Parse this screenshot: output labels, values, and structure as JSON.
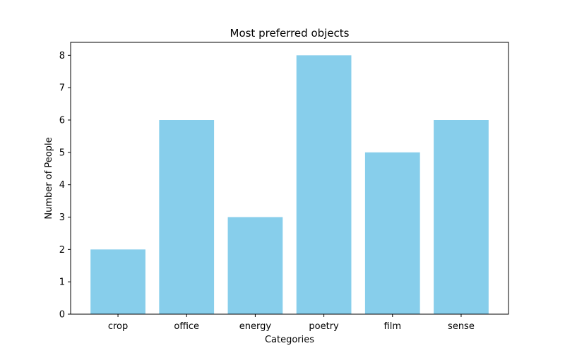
{
  "chart_data": {
    "type": "bar",
    "title": "Most preferred objects",
    "xlabel": "Categories",
    "ylabel": "Number of People",
    "categories": [
      "crop",
      "office",
      "energy",
      "poetry",
      "film",
      "sense"
    ],
    "values": [
      2,
      6,
      3,
      8,
      5,
      6
    ],
    "ylim": [
      0,
      8.4
    ],
    "yticks": [
      0,
      1,
      2,
      3,
      4,
      5,
      6,
      7,
      8
    ],
    "bar_color": "#87CEEB",
    "grid": false,
    "legend": "none"
  }
}
